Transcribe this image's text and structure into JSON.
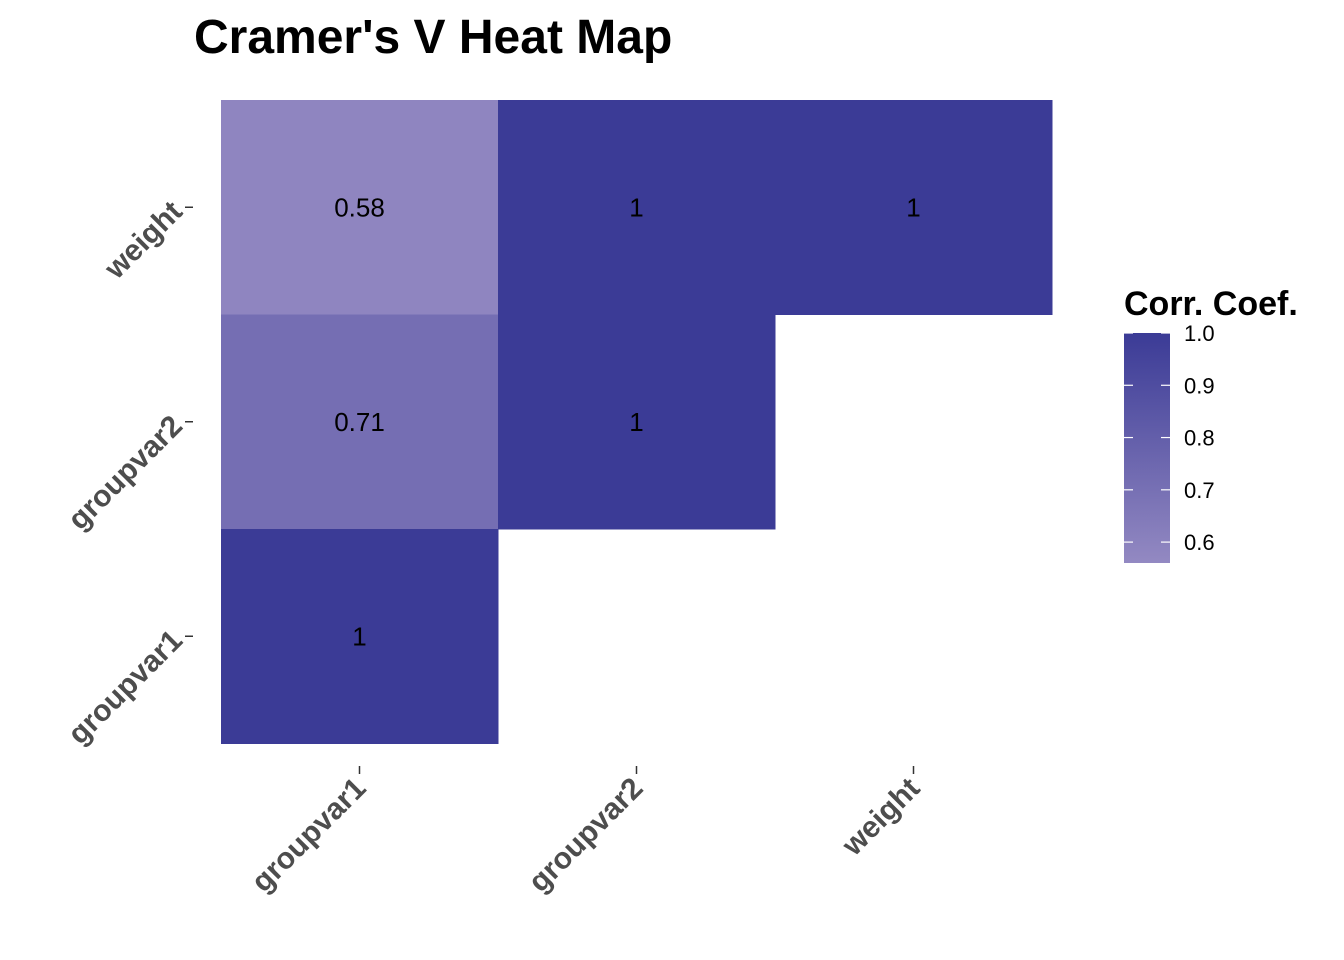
{
  "chart_data": {
    "type": "heatmap",
    "title": "Cramer's V Heat Map",
    "x_categories": [
      "groupvar1",
      "groupvar2",
      "weight"
    ],
    "y_categories": [
      "groupvar1",
      "groupvar2",
      "weight"
    ],
    "cells": [
      {
        "x": "groupvar1",
        "y": "weight",
        "value": 0.58,
        "label": "0.58"
      },
      {
        "x": "groupvar2",
        "y": "weight",
        "value": 1,
        "label": "1"
      },
      {
        "x": "weight",
        "y": "weight",
        "value": 1,
        "label": "1"
      },
      {
        "x": "groupvar1",
        "y": "groupvar2",
        "value": 0.71,
        "label": "0.71"
      },
      {
        "x": "groupvar2",
        "y": "groupvar2",
        "value": 1,
        "label": "1"
      },
      {
        "x": "groupvar1",
        "y": "groupvar1",
        "value": 1,
        "label": "1"
      }
    ],
    "legend": {
      "title": "Corr. Coef.",
      "position": "right",
      "range": [
        0.56,
        1.0
      ],
      "ticks": [
        1.0,
        0.9,
        0.8,
        0.7,
        0.6
      ],
      "tick_labels": [
        "1.0",
        "0.9",
        "0.8",
        "0.7",
        "0.6"
      ],
      "color_low": "#9389c2",
      "color_high": "#3b3b96"
    },
    "grid": false
  }
}
